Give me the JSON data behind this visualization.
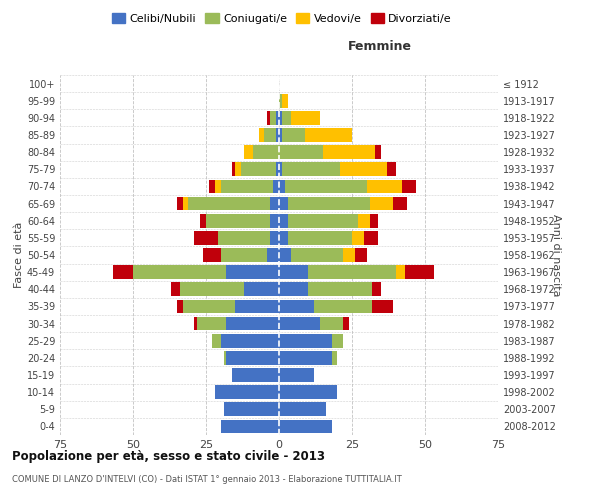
{
  "age_groups": [
    "0-4",
    "5-9",
    "10-14",
    "15-19",
    "20-24",
    "25-29",
    "30-34",
    "35-39",
    "40-44",
    "45-49",
    "50-54",
    "55-59",
    "60-64",
    "65-69",
    "70-74",
    "75-79",
    "80-84",
    "85-89",
    "90-94",
    "95-99",
    "100+"
  ],
  "birth_years": [
    "2008-2012",
    "2003-2007",
    "1998-2002",
    "1993-1997",
    "1988-1992",
    "1983-1987",
    "1978-1982",
    "1973-1977",
    "1968-1972",
    "1963-1967",
    "1958-1962",
    "1953-1957",
    "1948-1952",
    "1943-1947",
    "1938-1942",
    "1933-1937",
    "1928-1932",
    "1923-1927",
    "1918-1922",
    "1913-1917",
    "≤ 1912"
  ],
  "males": {
    "celibi": [
      20,
      19,
      22,
      16,
      18,
      20,
      18,
      15,
      12,
      18,
      4,
      3,
      3,
      3,
      2,
      1,
      0,
      1,
      1,
      0,
      0
    ],
    "coniugati": [
      0,
      0,
      0,
      0,
      1,
      3,
      10,
      18,
      22,
      32,
      16,
      18,
      22,
      28,
      18,
      12,
      9,
      4,
      2,
      0,
      0
    ],
    "vedovi": [
      0,
      0,
      0,
      0,
      0,
      0,
      0,
      0,
      0,
      0,
      0,
      0,
      0,
      2,
      2,
      2,
      3,
      2,
      0,
      0,
      0
    ],
    "divorziati": [
      0,
      0,
      0,
      0,
      0,
      0,
      1,
      2,
      3,
      7,
      6,
      8,
      2,
      2,
      2,
      1,
      0,
      0,
      1,
      0,
      0
    ]
  },
  "females": {
    "nubili": [
      18,
      16,
      20,
      12,
      18,
      18,
      14,
      12,
      10,
      10,
      4,
      3,
      3,
      3,
      2,
      1,
      0,
      1,
      1,
      0,
      0
    ],
    "coniugate": [
      0,
      0,
      0,
      0,
      2,
      4,
      8,
      20,
      22,
      30,
      18,
      22,
      24,
      28,
      28,
      20,
      15,
      8,
      3,
      1,
      0
    ],
    "vedove": [
      0,
      0,
      0,
      0,
      0,
      0,
      0,
      0,
      0,
      3,
      4,
      4,
      4,
      8,
      12,
      16,
      18,
      16,
      10,
      2,
      0
    ],
    "divorziate": [
      0,
      0,
      0,
      0,
      0,
      0,
      2,
      7,
      3,
      10,
      4,
      5,
      3,
      5,
      5,
      3,
      2,
      0,
      0,
      0,
      0
    ]
  },
  "colors": {
    "celibi": "#4472C4",
    "coniugati": "#9BBB59",
    "vedovi": "#FFC000",
    "divorziati": "#C0000B"
  },
  "xlim": 75,
  "title": "Popolazione per età, sesso e stato civile - 2013",
  "subtitle": "COMUNE DI LANZO D'INTELVI (CO) - Dati ISTAT 1° gennaio 2013 - Elaborazione TUTTITALIA.IT",
  "ylabel_left": "Fasce di età",
  "ylabel_right": "Anni di nascita",
  "xlabel_femmine": "Femmine",
  "legend_labels": [
    "Celibi/Nubili",
    "Coniugati/e",
    "Vedovi/e",
    "Divorziati/e"
  ],
  "background_color": "#ffffff",
  "grid_color": "#bbbbbb"
}
